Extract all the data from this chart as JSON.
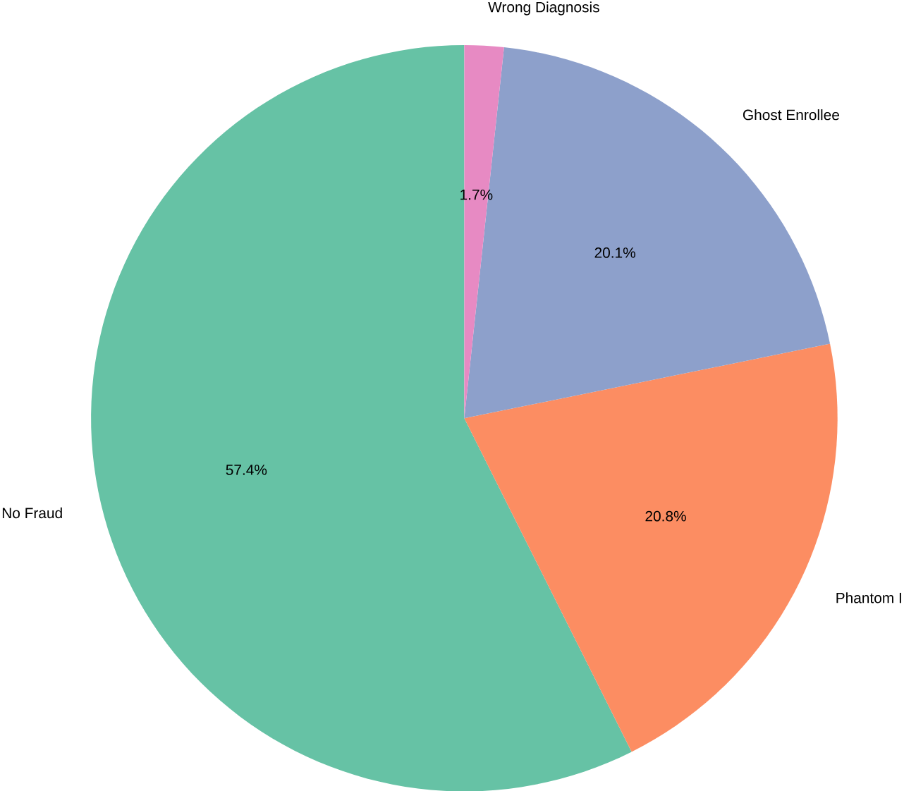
{
  "chart_data": {
    "type": "pie",
    "categories": [
      "No Fraud",
      "Phantom I",
      "Ghost Enrollee",
      "Wrong Diagnosis"
    ],
    "values": [
      57.4,
      20.8,
      20.1,
      1.7
    ],
    "colors": [
      "#66c2a5",
      "#fc8d62",
      "#8da0cb",
      "#e78ac3"
    ],
    "value_labels": [
      "57.4%",
      "20.8%",
      "20.1%",
      "1.7%"
    ]
  }
}
